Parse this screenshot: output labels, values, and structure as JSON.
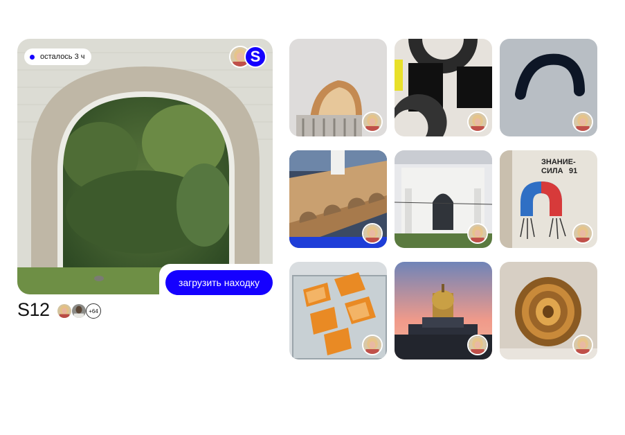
{
  "hero": {
    "timer_text": "осталось 3 ч",
    "badge_letter": "S",
    "upload_label": "загрузить находку",
    "code": "S12",
    "members_more": "+64"
  },
  "tiles": [
    {
      "subject": "toast"
    },
    {
      "subject": "black-shapes"
    },
    {
      "subject": "snow-arc"
    },
    {
      "subject": "wooden-bench"
    },
    {
      "subject": "white-building"
    },
    {
      "subject": "magnet-poster",
      "poster_text_1": "ЗНАНИЕ-",
      "poster_text_2": "СИЛА",
      "poster_text_3": "91"
    },
    {
      "subject": "papaya"
    },
    {
      "subject": "cathedral-sunset"
    },
    {
      "subject": "wood-ring"
    }
  ],
  "colors": {
    "accent": "#1500ff",
    "background": "#ffffff"
  }
}
